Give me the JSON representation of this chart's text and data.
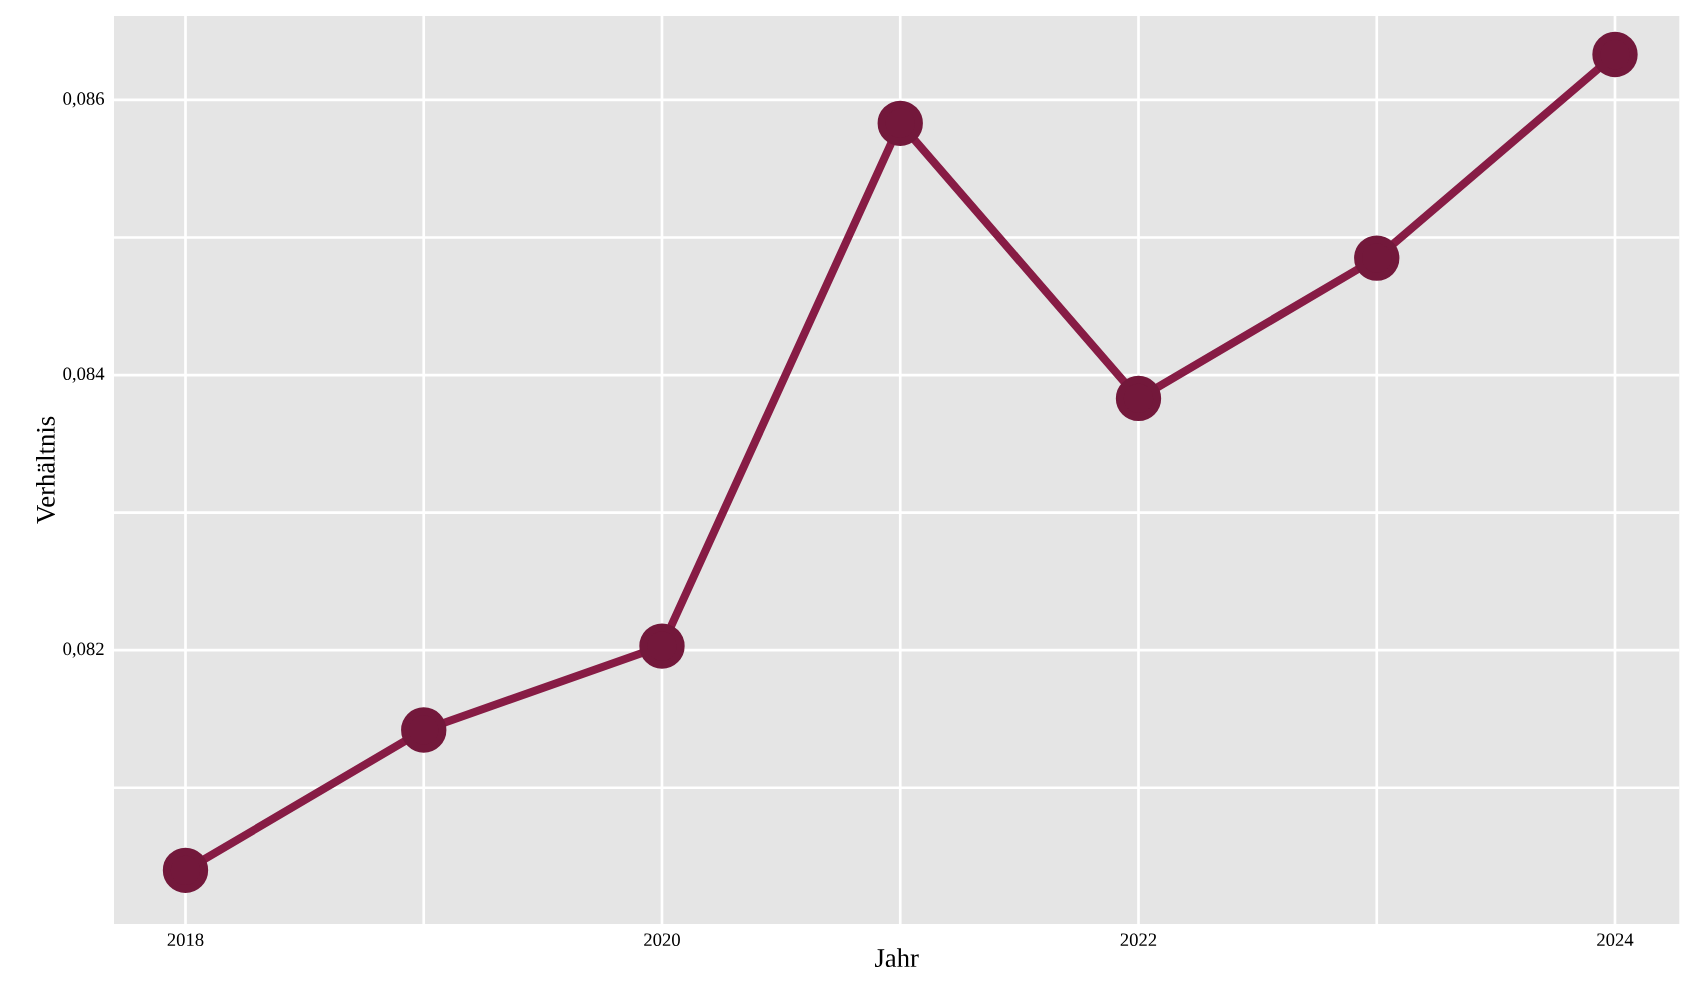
{
  "chart_data": {
    "type": "line",
    "xlabel": "Jahr",
    "ylabel": "Verhältnis",
    "x": [
      2018,
      2019,
      2020,
      2021,
      2022,
      2023,
      2024
    ],
    "series": [
      {
        "color": "#871c45",
        "values": [
          0.0804,
          0.08142,
          0.08203,
          0.08583,
          0.08383,
          0.08485,
          0.08633
        ]
      }
    ],
    "xlim": [
      2017.7,
      2024.27
    ],
    "ylim": [
      0.08001,
      0.08661
    ],
    "xticks": [
      2018,
      {
        "value": 2019,
        "label": null
      },
      2020,
      {
        "value": 2021,
        "label": null
      },
      2022,
      {
        "value": 2023,
        "label": null
      },
      2024
    ],
    "yticks": [
      {
        "value": 0.081,
        "label": null
      },
      {
        "value": 0.082,
        "label": "0,082"
      },
      {
        "value": 0.083,
        "label": null
      },
      {
        "value": 0.084,
        "label": "0,084"
      },
      {
        "value": 0.085,
        "label": null
      },
      {
        "value": 0.086,
        "label": "0,086"
      }
    ],
    "grid": true,
    "marker": "circle",
    "line_style": "solid"
  }
}
